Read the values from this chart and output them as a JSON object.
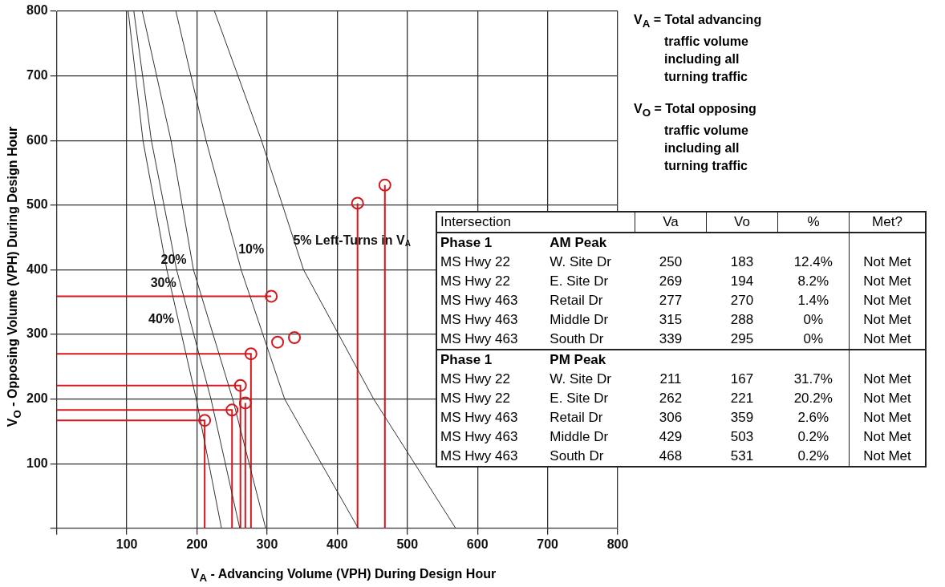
{
  "chart_data": {
    "type": "scatter",
    "xlabel": "V$_{A}$ - Advancing Volume (VPH) During Design Hour",
    "ylabel": "V$_{O}$ - Opposing Volume (VPH) During Design Hour",
    "xlim": [
      0,
      800
    ],
    "ylim": [
      0,
      800
    ],
    "xticks": [
      {
        "value": 0,
        "label": null
      },
      100,
      200,
      300,
      400,
      500,
      600,
      700,
      800
    ],
    "yticks": [
      {
        "value": 0,
        "label": null
      },
      100,
      200,
      300,
      400,
      500,
      600,
      700,
      800
    ],
    "grid": true,
    "marker": "circle",
    "legend": false,
    "series": [
      {
        "color": "#d4181e",
        "x": [
          250,
          269,
          277,
          315,
          339,
          211,
          262,
          306,
          429,
          468
        ],
        "values": [
          183,
          194,
          270,
          288,
          295,
          167,
          221,
          359,
          503,
          531
        ]
      },
      {
        "type": "line",
        "marker": "none",
        "name": "40%",
        "color": "#333333",
        "x": [
          102,
          123,
          157,
          199,
          235
        ],
        "values": [
          800,
          600,
          400,
          200,
          0
        ]
      },
      {
        "type": "line",
        "marker": "none",
        "name": "30%",
        "color": "#333333",
        "x": [
          110,
          135,
          171,
          220,
          261
        ],
        "values": [
          800,
          600,
          400,
          200,
          0
        ]
      },
      {
        "type": "line",
        "marker": "none",
        "name": "20%",
        "color": "#333333",
        "x": [
          122,
          163,
          195,
          251,
          298
        ],
        "values": [
          800,
          600,
          400,
          200,
          0
        ]
      },
      {
        "type": "line",
        "marker": "none",
        "name": "10%",
        "color": "#333333",
        "x": [
          170,
          213,
          263,
          325,
          430
        ],
        "values": [
          800,
          600,
          400,
          200,
          0
        ]
      },
      {
        "type": "line",
        "marker": "none",
        "name": "5% Left-Turns in V$_{A}$",
        "color": "#333333",
        "x": [
          225,
          292,
          352,
          452,
          569
        ],
        "values": [
          800,
          600,
          400,
          200,
          0
        ]
      },
      {
        "type": "line",
        "marker": "none",
        "color": "#d4181e",
        "x": [
          0,
          211,
          211
        ],
        "values": [
          167,
          167,
          0
        ]
      },
      {
        "type": "line",
        "marker": "none",
        "color": "#d4181e",
        "x": [
          0,
          250,
          250
        ],
        "values": [
          183,
          183,
          0
        ]
      },
      {
        "type": "line",
        "marker": "none",
        "color": "#d4181e",
        "x": [
          0,
          262,
          262
        ],
        "values": [
          221,
          221,
          0
        ]
      },
      {
        "type": "line",
        "marker": "none",
        "color": "#d4181e",
        "x": [
          0,
          277,
          277
        ],
        "values": [
          270,
          270,
          0
        ]
      },
      {
        "type": "line",
        "marker": "none",
        "color": "#d4181e",
        "x": [
          0,
          306
        ],
        "values": [
          359,
          359
        ]
      },
      {
        "type": "line",
        "marker": "none",
        "color": "#d4181e",
        "x": [
          269,
          269
        ],
        "values": [
          194,
          0
        ]
      },
      {
        "type": "line",
        "marker": "none",
        "color": "#d4181e",
        "x": [
          429,
          429
        ],
        "values": [
          503,
          0
        ]
      },
      {
        "type": "line",
        "marker": "none",
        "color": "#d4181e",
        "x": [
          468,
          468
        ],
        "values": [
          531,
          0
        ]
      }
    ],
    "annotations": [
      "V$_{A}$ = Total advancing traffic volume including all turning traffic",
      "V$_{O}$ = Total opposing traffic volume including all turning traffic",
      "Intersection\t\tVa\tVo\t%\tMet?",
      "Phase 1\tAM Peak",
      "MS Hwy 22\tW. Site Dr\t250\t183\t12.4%\tNot Met",
      "MS Hwy 22\tE. Site Dr\t269\t194\t8.2%\tNot Met",
      "MS Hwy 463\tRetail Dr\t277\t270\t1.4%\tNot Met",
      "MS Hwy 463\tMiddle Dr\t315\t288\t0%\tNot Met",
      "MS Hwy 463\tSouth Dr\t339\t295\t0%\tNot Met",
      "Phase 1\tPM Peak",
      "MS Hwy 22\tW. Site Dr\t211\t167\t31.7%\tNot Met",
      "MS Hwy 22\tE. Site Dr\t262\t221\t20.2%\tNot Met",
      "MS Hwy 463\tRetail Dr\t306\t359\t2.6%\tNot Met",
      "MS Hwy 463\tMiddle Dr\t429\t503\t0.2%\tNot Met",
      "MS Hwy 463\tSouth Dr\t468\t531\t0.2%\tNot Met"
    ]
  }
}
